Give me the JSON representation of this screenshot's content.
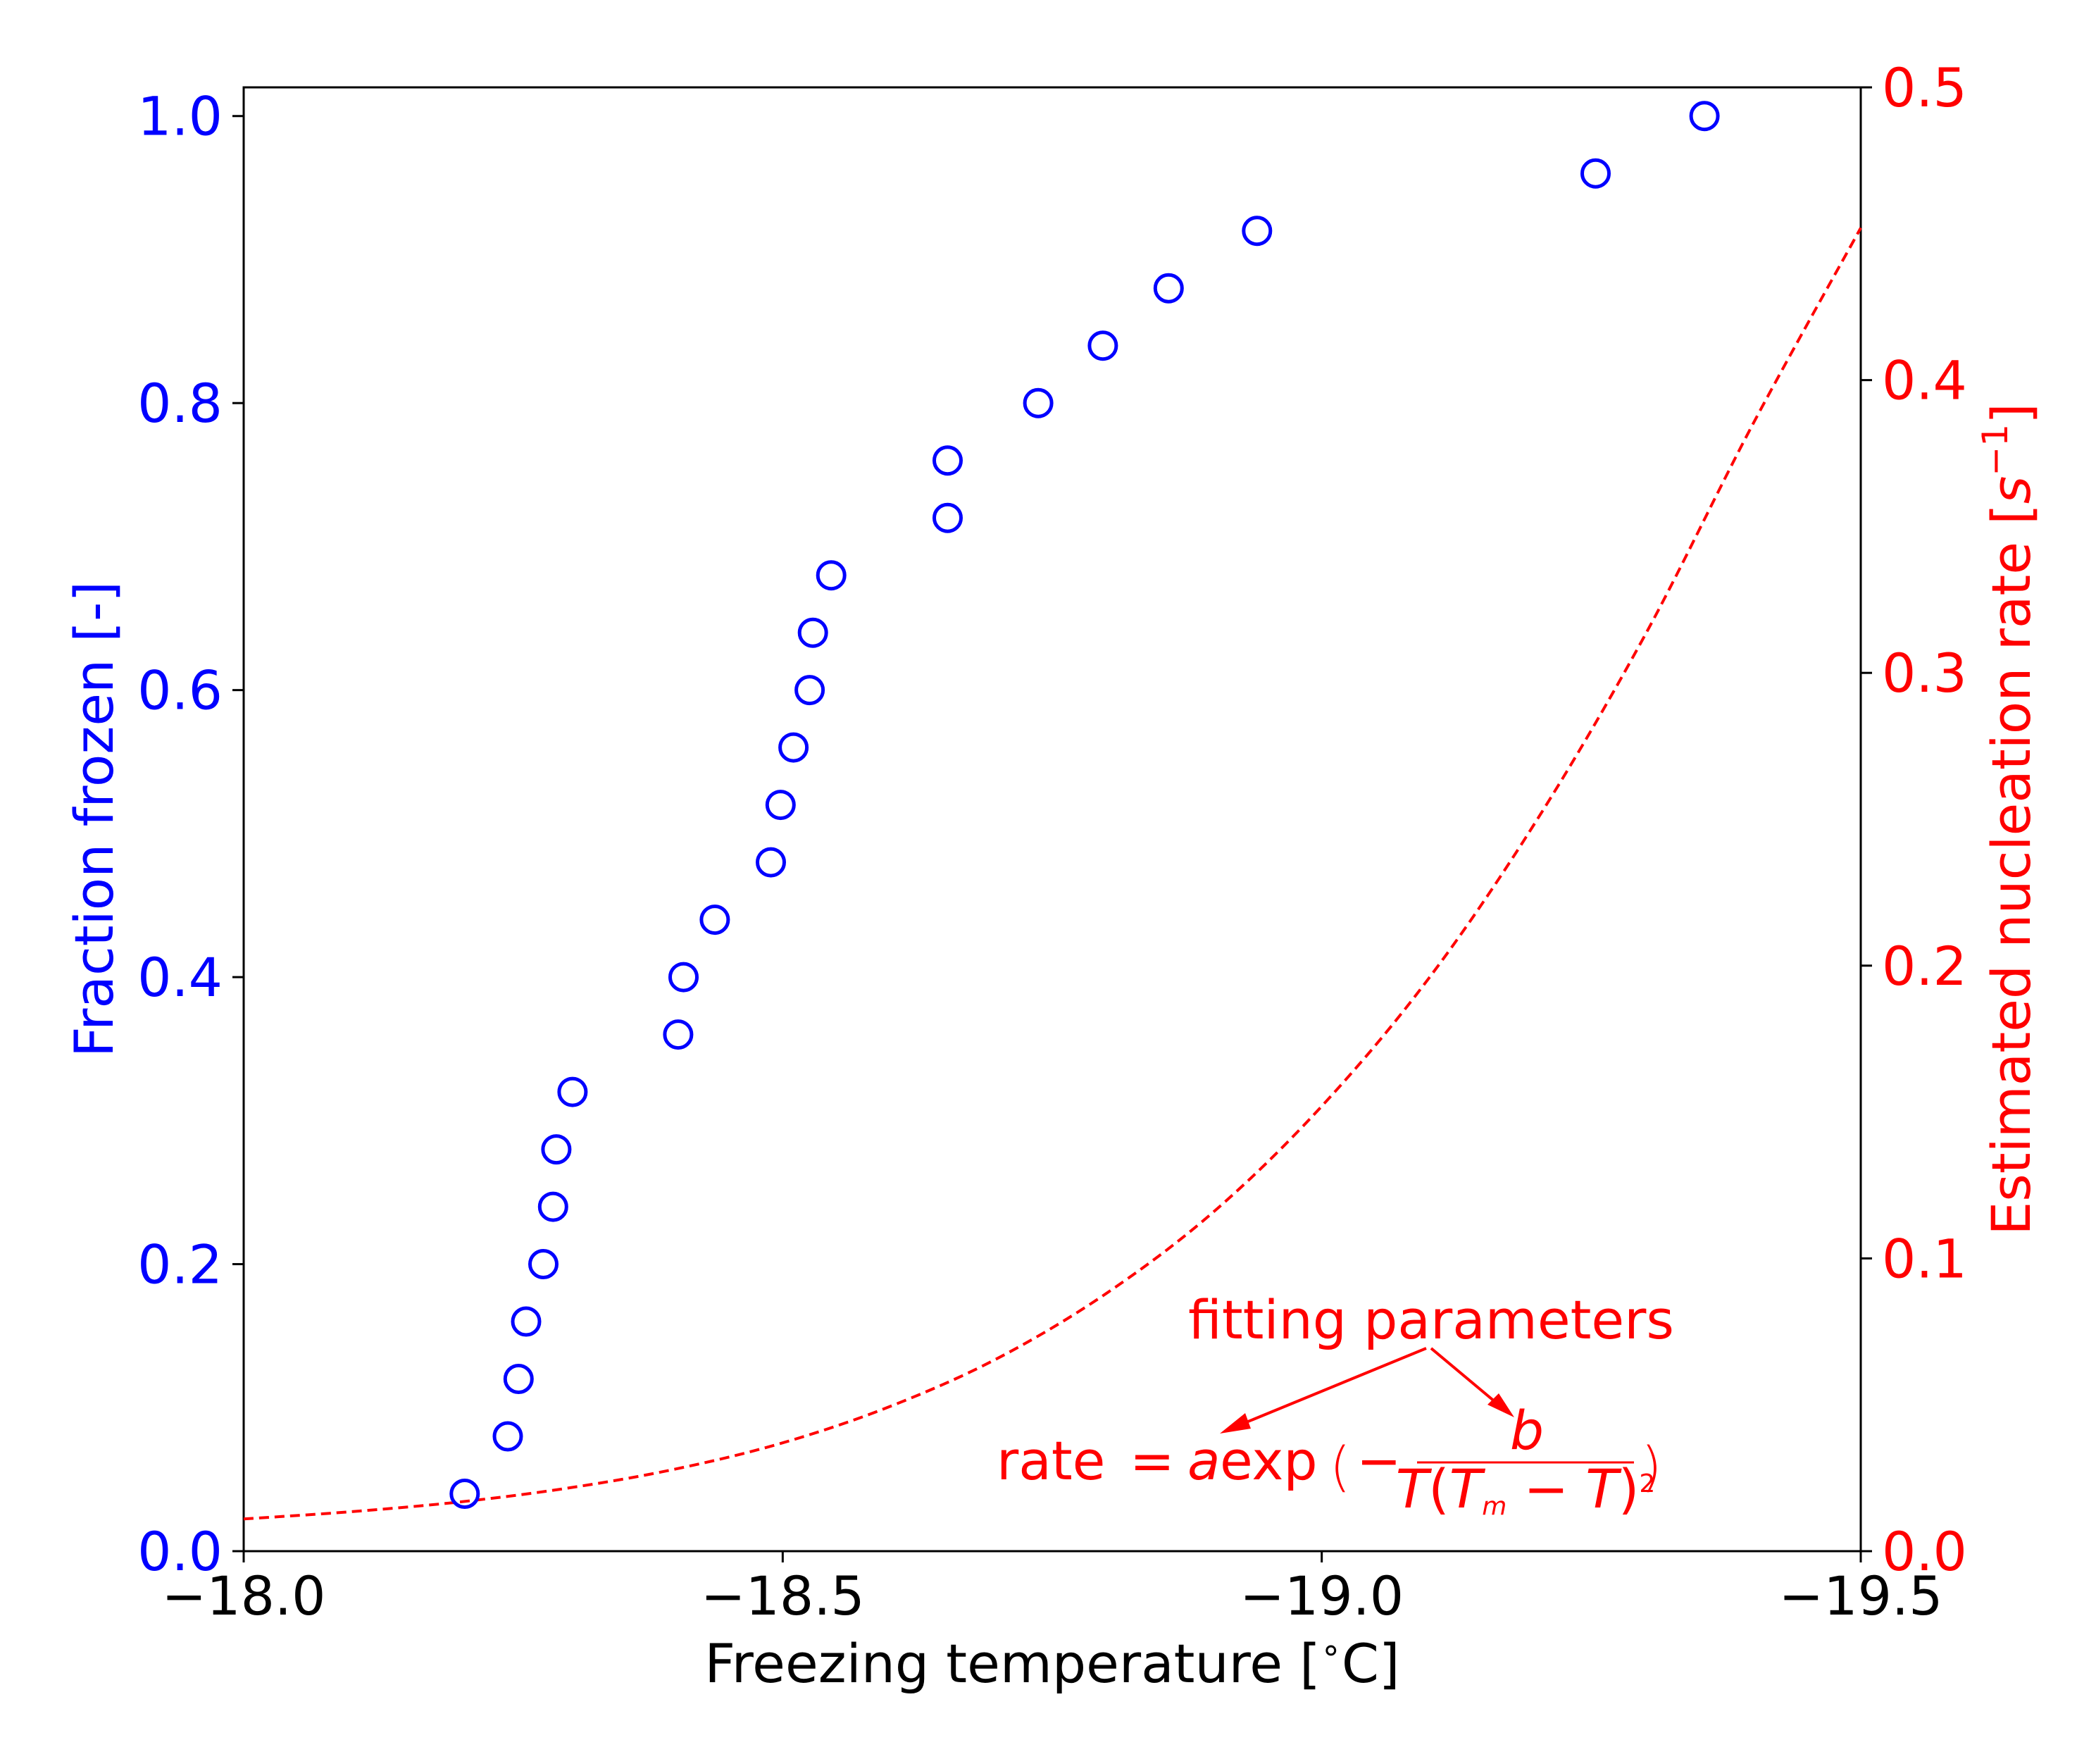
{
  "colors": {
    "left_axis": "#0000ff",
    "right_axis": "#ff0000",
    "x_axis": "#000000",
    "points": "#0000ff",
    "rate_curve": "#ff0000"
  },
  "chart_data": {
    "type": "scatter",
    "xlabel": "Freezing temperature [∘C]",
    "xlabel_parts": {
      "prefix": "Freezing temperature [",
      "degree": "∘",
      "suffix": "C]"
    },
    "x_reversed": true,
    "xlim": [
      -18.0,
      -19.5
    ],
    "x_ticks": [
      -18.0,
      -18.5,
      -19.0,
      -19.5
    ],
    "x_tick_labels": [
      "−18.0",
      "−18.5",
      "−19.0",
      "−19.5"
    ],
    "left_axis": {
      "label": "Fraction frozen [-]",
      "ylim": [
        0.0,
        1.02
      ],
      "ticks": [
        0.0,
        0.2,
        0.4,
        0.6,
        0.8,
        1.0
      ],
      "tick_labels": [
        "0.0",
        "0.2",
        "0.4",
        "0.6",
        "0.8",
        "1.0"
      ]
    },
    "right_axis": {
      "label": "Estimated nucleation rate [s⁻¹]",
      "label_parts": {
        "prefix": "Estimated nucleation rate [",
        "var": "s",
        "sup": "−1",
        "suffix": "]"
      },
      "ylim": [
        0.0,
        0.5
      ],
      "ticks": [
        0.0,
        0.1,
        0.2,
        0.3,
        0.4,
        0.5
      ],
      "tick_labels": [
        "0.0",
        "0.1",
        "0.2",
        "0.3",
        "0.4",
        "0.5"
      ]
    },
    "series": [
      {
        "marker": "open-circle",
        "axis": "left",
        "x": [
          -18.205,
          -18.245,
          -18.255,
          -18.262,
          -18.278,
          -18.287,
          -18.29,
          -18.305,
          -18.403,
          -18.408,
          -18.437,
          -18.489,
          -18.498,
          -18.51,
          -18.525,
          -18.528,
          -18.545,
          -18.653,
          -18.653,
          -18.737,
          -18.797,
          -18.858,
          -18.94,
          -19.254,
          -19.355
        ],
        "y": [
          0.04,
          0.08,
          0.12,
          0.16,
          0.2,
          0.24,
          0.28,
          0.32,
          0.36,
          0.4,
          0.44,
          0.48,
          0.52,
          0.56,
          0.6,
          0.64,
          0.68,
          0.72,
          0.76,
          0.8,
          0.84,
          0.88,
          0.92,
          0.96,
          1.0
        ]
      },
      {
        "marker": "dashed-line",
        "axis": "right",
        "x": [
          -18.0,
          -18.1,
          -18.2,
          -18.3,
          -18.4,
          -18.5,
          -18.6,
          -18.7,
          -18.8,
          -18.9,
          -19.0,
          -19.1,
          -19.2,
          -19.3,
          -19.4,
          -19.5
        ],
        "y": [
          0.011,
          0.0135,
          0.0168,
          0.0215,
          0.028,
          0.037,
          0.0495,
          0.066,
          0.088,
          0.116,
          0.152,
          0.196,
          0.25,
          0.313,
          0.385,
          0.452
        ]
      }
    ],
    "annotations": {
      "label": "fitting parameters",
      "formula_parts": {
        "lhs": "rate",
        "eq": "=",
        "a": "a",
        "exp": "exp",
        "lparen": "(",
        "minus": "−",
        "num": "b",
        "den_T": "T",
        "den_open": "(",
        "den_Tm": "T",
        "den_m": "m",
        "den_minus": " − ",
        "den_T2": "T",
        "den_close": ")",
        "den_sup": "2",
        "rparen": ")"
      }
    }
  }
}
